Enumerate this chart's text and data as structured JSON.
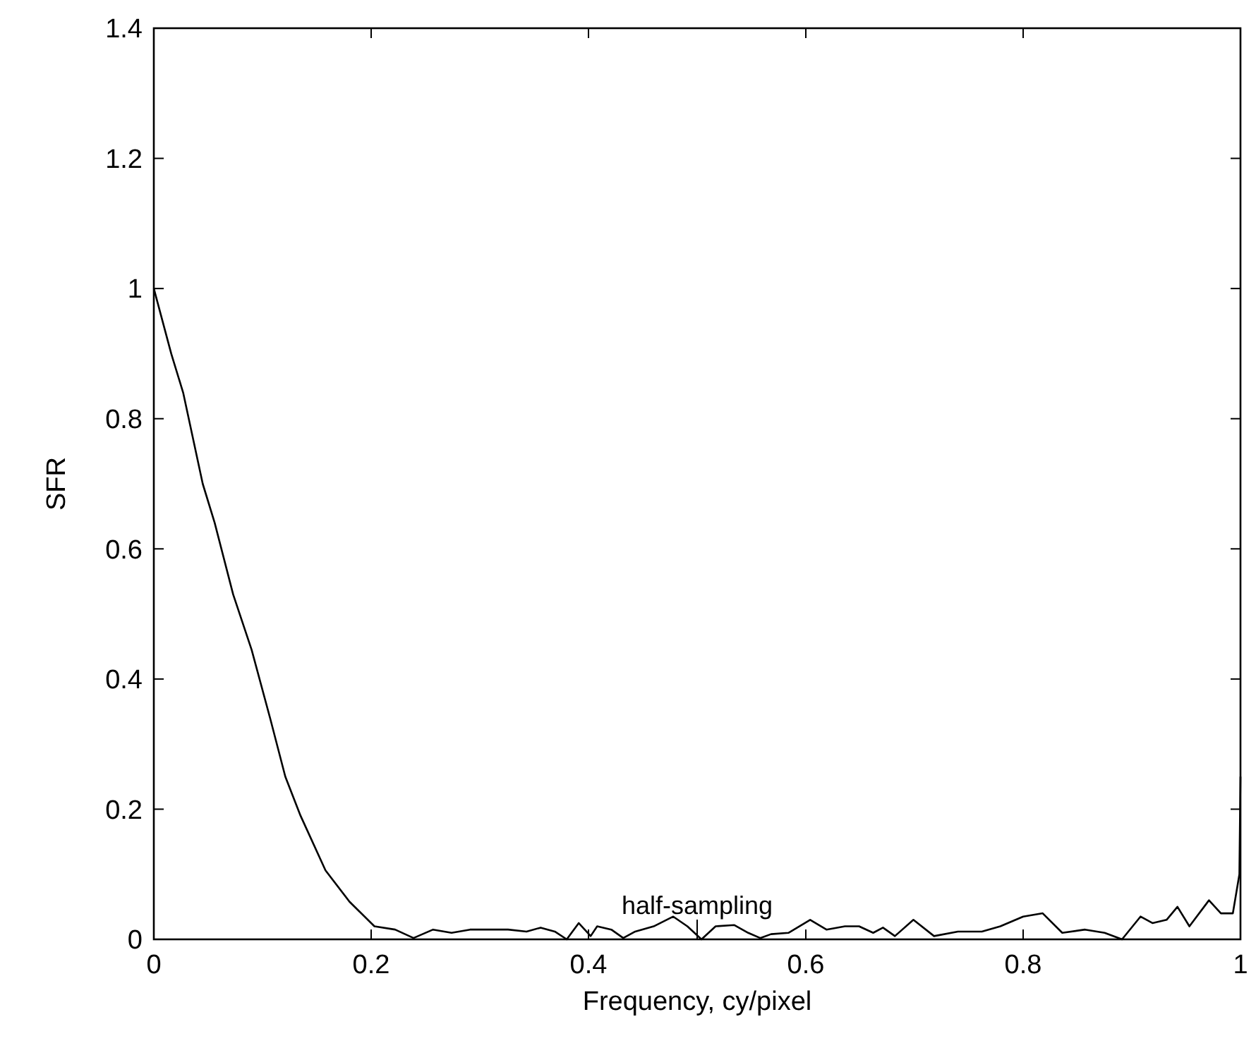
{
  "chart_data": {
    "type": "line",
    "xlabel": "Frequency, cy/pixel",
    "ylabel": "SFR",
    "xlim": [
      0,
      1
    ],
    "ylim": [
      0,
      1.4
    ],
    "xticks": [
      0,
      0.2,
      0.4,
      0.6,
      0.8,
      1
    ],
    "yticks": [
      0,
      0.2,
      0.4,
      0.6,
      0.8,
      1,
      1.2,
      1.4
    ],
    "grid": false,
    "marker": "none",
    "line_style": "solid",
    "annotations": [
      "half-sampling"
    ],
    "series": [
      {
        "color": "#000000",
        "x": [
          0,
          0.016,
          0.027,
          0.045,
          0.056,
          0.073,
          0.09,
          0.107,
          0.121,
          0.135,
          0.158,
          0.18,
          0.203,
          0.222,
          0.239,
          0.257,
          0.274,
          0.291,
          0.309,
          0.326,
          0.343,
          0.356,
          0.369,
          0.38,
          0.391,
          0.402,
          0.408,
          0.421,
          0.432,
          0.443,
          0.46,
          0.478,
          0.491,
          0.504,
          0.517,
          0.534,
          0.547,
          0.558,
          0.568,
          0.584,
          0.604,
          0.619,
          0.636,
          0.649,
          0.662,
          0.671,
          0.682,
          0.699,
          0.718,
          0.74,
          0.762,
          0.779,
          0.8,
          0.818,
          0.836,
          0.857,
          0.875,
          0.891,
          0.908,
          0.919,
          0.932,
          0.942,
          0.953,
          0.971,
          0.982,
          0.993,
          0.999,
          1
        ],
        "values": [
          1,
          0.9,
          0.84,
          0.7,
          0.64,
          0.53,
          0.445,
          0.34,
          0.25,
          0.19,
          0.106,
          0.058,
          0.02,
          0.015,
          0.002,
          0.015,
          0.01,
          0.015,
          0.015,
          0.015,
          0.012,
          0.018,
          0.012,
          0,
          0.025,
          0.005,
          0.02,
          0.015,
          0.002,
          0.012,
          0.02,
          0.035,
          0.02,
          0,
          0.02,
          0.022,
          0.01,
          0.002,
          0.008,
          0.01,
          0.03,
          0.015,
          0.02,
          0.02,
          0.01,
          0.018,
          0.005,
          0.03,
          0.005,
          0.012,
          0.012,
          0.02,
          0.035,
          0.04,
          0.01,
          0.015,
          0.01,
          0,
          0.035,
          0.025,
          0.03,
          0.05,
          0.02,
          0.06,
          0.04,
          0.04,
          0.1,
          0.25
        ]
      }
    ]
  }
}
